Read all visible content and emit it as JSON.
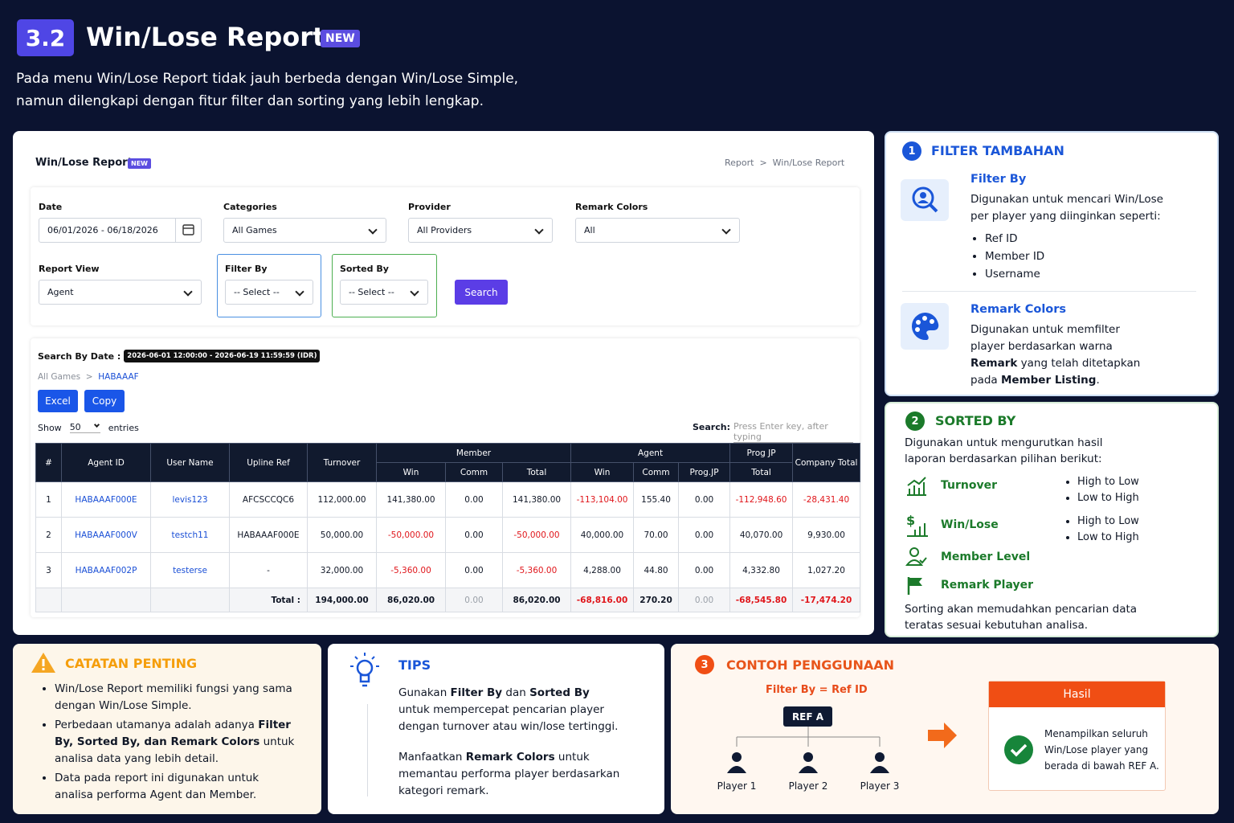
{
  "header": {
    "number": "3.2",
    "title": "Win/Lose Report",
    "badge": "NEW",
    "description": [
      "Pada menu Win/Lose Report tidak jauh berbeda dengan Win/Lose Simple,",
      "namun dilengkapi dengan fitur filter dan sorting yang lebih lengkap."
    ]
  },
  "report": {
    "title": "Win/Lose Report",
    "badge": "NEW",
    "breadcrumb": [
      "Report",
      "Win/Lose Report"
    ],
    "filters": [
      {
        "label": "Date",
        "value": "06/01/2026 - 06/18/2026"
      },
      {
        "label": "Categories",
        "value": "All Games"
      },
      {
        "label": "Provider",
        "value": "All Providers"
      },
      {
        "label": "Remark Colors",
        "value": "All"
      },
      {
        "label": "Report View",
        "value": "Agent"
      },
      {
        "label": "Filter By",
        "value": "-- Select --"
      },
      {
        "label": "Sorted By",
        "value": "-- Select --"
      }
    ],
    "search_button": "Search",
    "search_by_date_label": "Search By Date :",
    "search_by_date_value": "2026-06-01 12:00:00 - 2026-06-19 11:59:59 (IDR)",
    "path": [
      "All Games",
      "HABAAAF"
    ],
    "buttons": [
      "Excel",
      "Copy"
    ],
    "show_label": "Show",
    "show_value": "50",
    "entries_label": "entries",
    "search_label": "Search:",
    "search_placeholder": "Press Enter key, after typing",
    "table": {
      "group_headers": [
        "Member",
        "Agent",
        "Prog JP"
      ],
      "headers": [
        "#",
        "Agent ID",
        "User Name",
        "Upline Ref",
        "Turnover",
        "Win",
        "Comm",
        "Total",
        "Win",
        "Comm",
        "Prog.JP",
        "Total",
        "Company Total"
      ],
      "rows": [
        [
          "1",
          "HABAAAF000E",
          "levis123",
          "AFCSCCQC6",
          "112,000.00",
          "141,380.00",
          "0.00",
          "141,380.00",
          "-113,104.00",
          "155.40",
          "0.00",
          "-112,948.60",
          "-28,431.40"
        ],
        [
          "2",
          "HABAAAF000V",
          "testch11",
          "HABAAAF000E",
          "50,000.00",
          "-50,000.00",
          "0.00",
          "-50,000.00",
          "40,000.00",
          "70.00",
          "0.00",
          "40,070.00",
          "9,930.00"
        ],
        [
          "3",
          "HABAAAF002P",
          "testerse",
          "-",
          "32,000.00",
          "-5,360.00",
          "0.00",
          "-5,360.00",
          "4,288.00",
          "44.80",
          "0.00",
          "4,332.80",
          "1,027.20"
        ]
      ],
      "total_label": "Total :",
      "totals": [
        "194,000.00",
        "86,020.00",
        "0.00",
        "86,020.00",
        "-68,816.00",
        "270.20",
        "0.00",
        "-68,545.80",
        "-17,474.20"
      ]
    }
  },
  "filter_panel": {
    "number": "1",
    "title": "FILTER TAMBAHAN",
    "filter_by": {
      "title": "Filter By",
      "description": "Digunakan untuk mencari Win/Lose per player yang diinginkan seperti:",
      "bullets": [
        "Ref ID",
        "Member ID",
        "Username"
      ]
    },
    "remark_colors": {
      "title": "Remark Colors",
      "description": [
        "Digunakan untuk memfilter player berdasarkan warna ",
        "Remark",
        " yang telah ditetapkan pada ",
        "Member Listing",
        "."
      ]
    }
  },
  "sorted_panel": {
    "number": "2",
    "title": "SORTED BY",
    "intro": "Digunakan untuk mengurutkan hasil laporan berdasarkan pilihan berikut:",
    "items": [
      {
        "label": "Turnover",
        "options": [
          "High to Low",
          "Low to High"
        ]
      },
      {
        "label": "Win/Lose",
        "options": [
          "High to Low",
          "Low to High"
        ]
      },
      {
        "label": "Member Level"
      },
      {
        "label": "Remark Player"
      }
    ],
    "footer": "Sorting akan memudahkan pencarian data teratas sesuai kebutuhan analisa."
  },
  "notes": {
    "title": "CATATAN PENTING",
    "bullets": [
      [
        "Win/Lose Report memiliki fungsi yang sama dengan Win/Lose Simple."
      ],
      [
        "Perbedaan utamanya adalah adanya ",
        "Filter By, Sorted By, dan Remark Colors",
        " untuk analisa data yang lebih detail."
      ],
      [
        "Data pada report ini digunakan untuk analisa performa Agent dan Member."
      ]
    ]
  },
  "tips": {
    "title": "TIPS",
    "paragraphs": [
      [
        "Gunakan ",
        "Filter By",
        " dan ",
        "Sorted By",
        " untuk mempercepat pencarian player dengan turnover atau win/lose tertinggi."
      ],
      [
        "Manfaatkan ",
        "Remark Colors",
        " untuk memantau performa player berdasarkan kategori remark."
      ]
    ]
  },
  "example": {
    "number": "3",
    "title": "CONTOH PENGGUNAAN",
    "filter": "Filter By = Ref ID",
    "root": "REF A",
    "players": [
      "Player 1",
      "Player 2",
      "Player 3"
    ],
    "result_title": "Hasil",
    "result_text": "Menampilkan seluruh Win/Lose player yang berada di bawah REF A."
  }
}
